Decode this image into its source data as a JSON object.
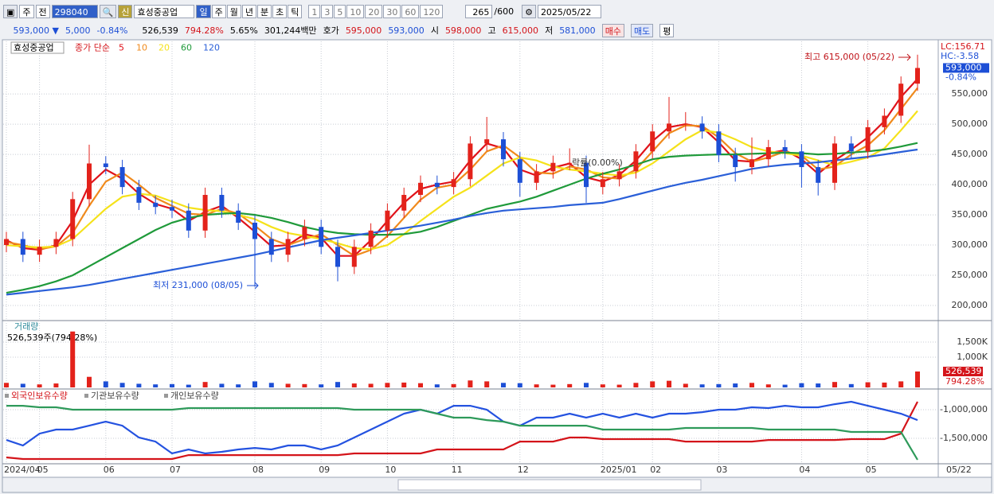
{
  "toolbar": {
    "market": "주",
    "mode": "전",
    "code": "298040",
    "badge": "신",
    "name": "효성중공업",
    "periods": [
      "일",
      "주",
      "월",
      "년",
      "분",
      "초",
      "틱"
    ],
    "intervals": [
      "1",
      "3",
      "5",
      "10",
      "20",
      "30",
      "60",
      "120"
    ],
    "count": "265",
    "max": "/600",
    "date": "2025/05/22"
  },
  "info_bar": {
    "price": "593,000 ▼",
    "change": "5,000",
    "change_pct": "-0.84%",
    "volume": "526,539",
    "volume_pct": "794.28%",
    "turnover": "5.65%",
    "amount": "301,244백만",
    "quote_label": "호가",
    "ask": "595,000",
    "bid": "593,000",
    "open_label": "시",
    "open": "598,000",
    "high_label": "고",
    "high": "615,000",
    "low_label": "저",
    "low": "581,000",
    "buy": "매수",
    "sell": "매도",
    "avg": "평"
  },
  "chart_data": [
    {
      "type": "candlestick",
      "legend_title": "효성중공업",
      "legend_label": "종가 단순",
      "categories": [
        "2024/04",
        null,
        "05",
        null,
        null,
        null,
        "06",
        null,
        null,
        null,
        "07",
        null,
        null,
        null,
        null,
        "08",
        null,
        null,
        null,
        "09",
        null,
        null,
        null,
        "10",
        null,
        null,
        null,
        "11",
        null,
        null,
        null,
        "12",
        null,
        null,
        null,
        null,
        "2025/01",
        null,
        null,
        "02",
        null,
        null,
        null,
        "03",
        null,
        null,
        null,
        null,
        "04",
        null,
        null,
        null,
        "05",
        null,
        null,
        null
      ],
      "open": [
        300000,
        310000,
        284000,
        297000,
        310000,
        376000,
        435000,
        429000,
        396000,
        370000,
        363000,
        357000,
        324000,
        383000,
        357000,
        337000,
        310000,
        284000,
        310000,
        330000,
        297000,
        264000,
        297000,
        324000,
        357000,
        383000,
        403000,
        396000,
        409000,
        468000,
        475000,
        442000,
        403000,
        422000,
        436000,
        436000,
        396000,
        409000,
        422000,
        455000,
        488000,
        501000,
        501000,
        488000,
        449000,
        429000,
        442000,
        462000,
        455000,
        429000,
        403000,
        468000,
        455000,
        495000,
        514000,
        567000
      ],
      "high": [
        322000,
        322000,
        309000,
        322000,
        388000,
        466000,
        447000,
        441000,
        408000,
        382000,
        375000,
        369000,
        395000,
        395000,
        369000,
        349000,
        322000,
        322000,
        342000,
        342000,
        309000,
        309000,
        336000,
        369000,
        395000,
        415000,
        415000,
        421000,
        480000,
        512000,
        487000,
        454000,
        434000,
        448000,
        460000,
        448000,
        421000,
        434000,
        467000,
        500000,
        545000,
        520000,
        513000,
        500000,
        461000,
        478000,
        474000,
        474000,
        467000,
        441000,
        480000,
        480000,
        507000,
        526000,
        579000,
        615000
      ],
      "low": [
        288000,
        272000,
        272000,
        285000,
        298000,
        364000,
        417000,
        384000,
        358000,
        351000,
        345000,
        312000,
        312000,
        345000,
        325000,
        231000,
        272000,
        272000,
        298000,
        285000,
        240000,
        252000,
        285000,
        312000,
        345000,
        371000,
        384000,
        384000,
        397000,
        456000,
        430000,
        380000,
        391000,
        410000,
        424000,
        370000,
        384000,
        397000,
        410000,
        443000,
        476000,
        489000,
        476000,
        437000,
        405000,
        417000,
        430000,
        443000,
        395000,
        382000,
        391000,
        443000,
        443000,
        483000,
        502000,
        555000
      ],
      "close": [
        310000,
        284000,
        297000,
        310000,
        376000,
        435000,
        429000,
        396000,
        370000,
        363000,
        357000,
        324000,
        383000,
        357000,
        337000,
        310000,
        284000,
        310000,
        330000,
        297000,
        264000,
        297000,
        324000,
        357000,
        383000,
        403000,
        396000,
        409000,
        468000,
        475000,
        442000,
        403000,
        422000,
        436000,
        436000,
        396000,
        409000,
        422000,
        455000,
        488000,
        501000,
        501000,
        488000,
        449000,
        429000,
        442000,
        462000,
        455000,
        429000,
        403000,
        468000,
        455000,
        495000,
        514000,
        567000,
        593000
      ],
      "up_color": "#e3221b",
      "down_color": "#1d4fd6",
      "series": [
        {
          "name": "5",
          "color": "#e0121a",
          "values": [
            308000,
            295000,
            292000,
            300000,
            340000,
            400000,
            425000,
            410000,
            385000,
            368000,
            360000,
            340000,
            355000,
            365000,
            345000,
            322000,
            298000,
            300000,
            318000,
            312000,
            282000,
            282000,
            308000,
            340000,
            370000,
            393000,
            400000,
            405000,
            440000,
            468000,
            460000,
            425000,
            415000,
            428000,
            435000,
            412000,
            405000,
            416000,
            440000,
            472000,
            495000,
            500000,
            495000,
            470000,
            440000,
            438000,
            452000,
            457000,
            442000,
            418000,
            440000,
            458000,
            478000,
            505000,
            545000,
            575000
          ]
        },
        {
          "name": "10",
          "color": "#f08a1c",
          "values": [
            305000,
            300000,
            293000,
            298000,
            320000,
            365000,
            405000,
            420000,
            400000,
            378000,
            365000,
            352000,
            350000,
            360000,
            352000,
            332000,
            310000,
            300000,
            310000,
            318000,
            300000,
            282000,
            292000,
            315000,
            345000,
            375000,
            395000,
            400000,
            425000,
            455000,
            465000,
            445000,
            420000,
            418000,
            430000,
            425000,
            412000,
            410000,
            425000,
            455000,
            485000,
            498000,
            497000,
            478000,
            452000,
            438000,
            445000,
            455000,
            448000,
            425000,
            430000,
            450000,
            465000,
            490000,
            525000,
            560000
          ]
        },
        {
          "name": "20",
          "color": "#f5e21a",
          "values": [
            300000,
            298000,
            296000,
            298000,
            310000,
            335000,
            360000,
            380000,
            385000,
            382000,
            372000,
            362000,
            358000,
            356000,
            350000,
            343000,
            330000,
            320000,
            315000,
            310000,
            303000,
            295000,
            293000,
            300000,
            318000,
            340000,
            360000,
            380000,
            395000,
            415000,
            435000,
            445000,
            440000,
            430000,
            425000,
            422000,
            418000,
            415000,
            420000,
            435000,
            455000,
            475000,
            490000,
            486000,
            475000,
            462000,
            455000,
            452000,
            448000,
            440000,
            432000,
            438000,
            445000,
            460000,
            490000,
            522000
          ]
        },
        {
          "name": "60",
          "color": "#1f9a3a",
          "values": [
            221000,
            226000,
            232000,
            240000,
            250000,
            265000,
            280000,
            295000,
            310000,
            325000,
            337000,
            345000,
            350000,
            352000,
            353000,
            350000,
            345000,
            338000,
            330000,
            324000,
            320000,
            318000,
            317000,
            317000,
            318000,
            322000,
            330000,
            340000,
            350000,
            360000,
            366000,
            372000,
            380000,
            390000,
            400000,
            410000,
            418000,
            425000,
            433000,
            442000,
            446000,
            448000,
            449000,
            450000,
            450000,
            451000,
            452000,
            453000,
            452000,
            450000,
            451000,
            453000,
            455000,
            458000,
            463000,
            469000
          ]
        },
        {
          "name": "120",
          "color": "#2a5fd8",
          "values": [
            218000,
            221000,
            224000,
            227000,
            230000,
            234000,
            239000,
            244000,
            249000,
            254000,
            259000,
            264000,
            269000,
            274000,
            279000,
            284000,
            290000,
            296000,
            302000,
            308000,
            312000,
            316000,
            320000,
            324000,
            328000,
            332000,
            337000,
            342000,
            348000,
            353000,
            357000,
            359000,
            361000,
            363000,
            366000,
            368000,
            370000,
            376000,
            383000,
            390000,
            397000,
            403000,
            408000,
            414000,
            420000,
            426000,
            430000,
            433000,
            435000,
            437000,
            440000,
            443000,
            446000,
            450000,
            454000,
            458000
          ]
        }
      ],
      "ylim": [
        179000,
        637000
      ],
      "yticks": [
        {
          "value": 200000,
          "label": "200,000"
        },
        {
          "value": 250000,
          "label": "250,000"
        },
        {
          "value": 300000,
          "label": "300,000"
        },
        {
          "value": 350000,
          "label": "350,000"
        },
        {
          "value": 400000,
          "label": "400,000"
        },
        {
          "value": 450000,
          "label": "450,000"
        },
        {
          "value": 500000,
          "label": "500,000"
        },
        {
          "value": 550000,
          "label": "550,000"
        }
      ],
      "grid": true,
      "annotations": [
        "최고 615,000 (05/22)",
        "최저 231,000 (08/05)",
        "락률(0.00%)"
      ],
      "axis_notes": [
        "LC:156.71",
        "HC:-3.58"
      ],
      "last_price": {
        "value": 593000,
        "label": "593,000"
      },
      "last_change": "-0.84%"
    },
    {
      "type": "bar",
      "title": "거래량",
      "subtitle": "526,539주(794.28%)",
      "values": [
        150000,
        120000,
        100000,
        130000,
        1850000,
        350000,
        200000,
        150000,
        120000,
        100000,
        110000,
        90000,
        180000,
        120000,
        100000,
        200000,
        150000,
        120000,
        110000,
        100000,
        180000,
        130000,
        120000,
        150000,
        160000,
        140000,
        100000,
        110000,
        230000,
        200000,
        150000,
        140000,
        100000,
        90000,
        110000,
        150000,
        100000,
        90000,
        150000,
        200000,
        220000,
        120000,
        100000,
        110000,
        130000,
        150000,
        100000,
        90000,
        140000,
        130000,
        180000,
        110000,
        170000,
        160000,
        200000,
        526539
      ],
      "ylim": [
        0,
        2080000
      ],
      "yticks": [
        {
          "value": 1000000,
          "label": "1,000K"
        },
        {
          "value": 1500000,
          "label": "1,500K"
        }
      ],
      "last_label": "526,539",
      "last_ratio": "794.28%"
    },
    {
      "type": "line",
      "series": [
        {
          "name": "외국인보유수량",
          "color": "#d4141a",
          "values": [
            -1833000,
            -1861000,
            -1861000,
            -1861000,
            -1861000,
            -1861000,
            -1861000,
            -1861000,
            -1861000,
            -1861000,
            -1861000,
            -1792000,
            -1792000,
            -1792000,
            -1792000,
            -1792000,
            -1792000,
            -1792000,
            -1792000,
            -1792000,
            -1792000,
            -1764000,
            -1764000,
            -1764000,
            -1764000,
            -1764000,
            -1694000,
            -1694000,
            -1694000,
            -1694000,
            -1694000,
            -1556000,
            -1556000,
            -1556000,
            -1486000,
            -1486000,
            -1514000,
            -1514000,
            -1514000,
            -1514000,
            -1514000,
            -1556000,
            -1556000,
            -1556000,
            -1556000,
            -1556000,
            -1528000,
            -1528000,
            -1528000,
            -1528000,
            -1528000,
            -1514000,
            -1514000,
            -1514000,
            -1417000,
            -861000
          ]
        },
        {
          "name": "기관보유수량",
          "color": "#2452e0",
          "values": [
            -1528000,
            -1625000,
            -1417000,
            -1347000,
            -1347000,
            -1278000,
            -1208000,
            -1278000,
            -1486000,
            -1556000,
            -1764000,
            -1694000,
            -1764000,
            -1736000,
            -1694000,
            -1667000,
            -1694000,
            -1625000,
            -1625000,
            -1694000,
            -1625000,
            -1486000,
            -1347000,
            -1208000,
            -1069000,
            -1000000,
            -1069000,
            -931000,
            -931000,
            -1000000,
            -1208000,
            -1278000,
            -1139000,
            -1139000,
            -1069000,
            -1139000,
            -1069000,
            -1139000,
            -1069000,
            -1139000,
            -1069000,
            -1069000,
            -1042000,
            -1000000,
            -1000000,
            -958000,
            -972000,
            -931000,
            -958000,
            -958000,
            -903000,
            -861000,
            -931000,
            -1000000,
            -1069000,
            -1181000
          ]
        },
        {
          "name": "개인보유수량",
          "color": "#2e9a5a",
          "values": [
            -931000,
            -931000,
            -958000,
            -958000,
            -1000000,
            -1000000,
            -1000000,
            -1000000,
            -1000000,
            -1000000,
            -1000000,
            -972000,
            -972000,
            -972000,
            -972000,
            -972000,
            -972000,
            -972000,
            -972000,
            -972000,
            -972000,
            -1000000,
            -1000000,
            -1000000,
            -1000000,
            -1000000,
            -1069000,
            -1139000,
            -1139000,
            -1181000,
            -1208000,
            -1278000,
            -1278000,
            -1278000,
            -1278000,
            -1278000,
            -1347000,
            -1347000,
            -1347000,
            -1347000,
            -1347000,
            -1319000,
            -1319000,
            -1319000,
            -1319000,
            -1319000,
            -1347000,
            -1347000,
            -1347000,
            -1347000,
            -1347000,
            -1389000,
            -1389000,
            -1389000,
            -1389000,
            -1875000
          ]
        }
      ],
      "ylim": [
        -1930000,
        -680000
      ],
      "yticks": [
        {
          "value": -1000000,
          "label": "-1,000,000"
        },
        {
          "value": -1500000,
          "label": "-1,500,000"
        }
      ],
      "x_end_label": "05/22"
    }
  ]
}
